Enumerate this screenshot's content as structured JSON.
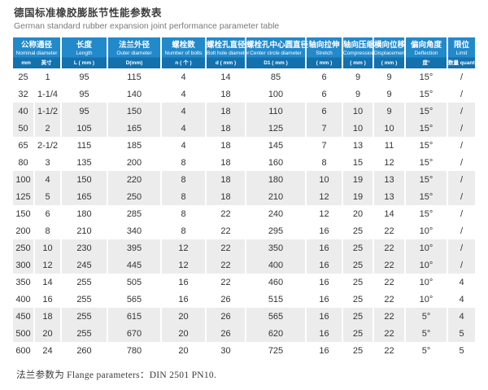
{
  "page": {
    "title_zh": "德国标准橡胶膨胀节性能参数表",
    "title_en": "German standard rubber expansion joint performance parameter table",
    "footer_note": "法兰参数为 Flange parameters：DIN 2501 PN10."
  },
  "colors": {
    "header_blue": "#2289ca",
    "header_blue_dark": "#1371ae",
    "stripe_gray": "#ececec",
    "body_text": "#333333"
  },
  "table": {
    "headers": [
      {
        "zh": "公称通径",
        "en": "Nominal diameter",
        "units": [
          "mm",
          "英寸"
        ]
      },
      {
        "zh": "长度",
        "en": "Length",
        "unit": "L ( mm )"
      },
      {
        "zh": "法兰外径",
        "en": "Outer diameter",
        "unit": "D(mm)"
      },
      {
        "zh": "螺栓数",
        "en": "Number of bolts",
        "unit": "n ( 个 )"
      },
      {
        "zh": "螺栓孔直径",
        "en": "Bolt hole diameter",
        "unit": "d ( mm )"
      },
      {
        "zh": "螺栓孔中心圆直径",
        "en": "Center circle diameter",
        "unit": "D1 ( mm )"
      },
      {
        "zh": "轴向拉伸",
        "en": "Stretch",
        "unit": "( mm )"
      },
      {
        "zh": "轴向压缩",
        "en": "Compression",
        "unit": "( mm )"
      },
      {
        "zh": "横向位移",
        "en": "Displacement",
        "unit": "( mm )"
      },
      {
        "zh": "偏向角度",
        "en": "Deflection",
        "unit": "度°"
      },
      {
        "zh": "限位",
        "en": "Limit",
        "unit": "数量 quantity"
      }
    ],
    "rows": [
      [
        "25",
        "1",
        "95",
        "115",
        "4",
        "14",
        "85",
        "6",
        "9",
        "9",
        "15°",
        "/"
      ],
      [
        "32",
        "1-1/4",
        "95",
        "140",
        "4",
        "18",
        "100",
        "6",
        "9",
        "9",
        "15°",
        "/"
      ],
      [
        "40",
        "1-1/2",
        "95",
        "150",
        "4",
        "18",
        "110",
        "6",
        "10",
        "9",
        "15°",
        "/"
      ],
      [
        "50",
        "2",
        "105",
        "165",
        "4",
        "18",
        "125",
        "7",
        "10",
        "10",
        "15°",
        "/"
      ],
      [
        "65",
        "2-1/2",
        "115",
        "185",
        "4",
        "18",
        "145",
        "7",
        "13",
        "11",
        "15°",
        "/"
      ],
      [
        "80",
        "3",
        "135",
        "200",
        "8",
        "18",
        "160",
        "8",
        "15",
        "12",
        "15°",
        "/"
      ],
      [
        "100",
        "4",
        "150",
        "220",
        "8",
        "18",
        "180",
        "10",
        "19",
        "13",
        "15°",
        "/"
      ],
      [
        "125",
        "5",
        "165",
        "250",
        "8",
        "18",
        "210",
        "12",
        "19",
        "13",
        "15°",
        "/"
      ],
      [
        "150",
        "6",
        "180",
        "285",
        "8",
        "22",
        "240",
        "12",
        "20",
        "14",
        "15°",
        "/"
      ],
      [
        "200",
        "8",
        "210",
        "340",
        "8",
        "22",
        "295",
        "16",
        "25",
        "22",
        "10°",
        "/"
      ],
      [
        "250",
        "10",
        "230",
        "395",
        "12",
        "22",
        "350",
        "16",
        "25",
        "22",
        "10°",
        "/"
      ],
      [
        "300",
        "12",
        "245",
        "445",
        "12",
        "22",
        "400",
        "16",
        "25",
        "22",
        "10°",
        "/"
      ],
      [
        "350",
        "14",
        "255",
        "505",
        "16",
        "22",
        "460",
        "16",
        "25",
        "22",
        "10°",
        "4"
      ],
      [
        "400",
        "16",
        "255",
        "565",
        "16",
        "26",
        "515",
        "16",
        "25",
        "22",
        "10°",
        "4"
      ],
      [
        "450",
        "18",
        "255",
        "615",
        "20",
        "26",
        "565",
        "16",
        "25",
        "22",
        "5°",
        "4"
      ],
      [
        "500",
        "20",
        "255",
        "670",
        "20",
        "26",
        "620",
        "16",
        "25",
        "22",
        "5°",
        "5"
      ],
      [
        "600",
        "24",
        "260",
        "780",
        "20",
        "30",
        "725",
        "16",
        "25",
        "22",
        "5°",
        "5"
      ]
    ]
  }
}
